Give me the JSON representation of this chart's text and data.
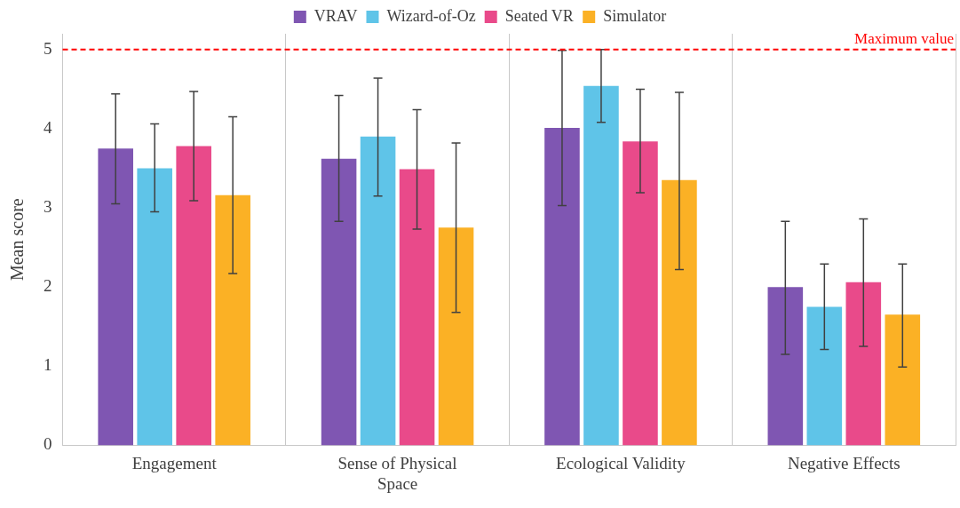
{
  "chart_data": {
    "type": "bar",
    "ylabel": "Mean score",
    "categories": [
      "Engagement",
      "Sense of Physical Space",
      "Ecological Validity",
      "Negative Effects"
    ],
    "series": [
      {
        "name": "VRAV",
        "color": "#7f56b2",
        "values": [
          3.75,
          3.62,
          4.01,
          2.0
        ],
        "errors": [
          [
            3.05,
            4.44
          ],
          [
            2.83,
            4.42
          ],
          [
            3.03,
            4.99
          ],
          [
            1.15,
            2.83
          ]
        ]
      },
      {
        "name": "Wizard-of-Oz",
        "color": "#5fc4e8",
        "values": [
          3.5,
          3.9,
          4.54,
          1.75
        ],
        "errors": [
          [
            2.95,
            4.06
          ],
          [
            3.15,
            4.64
          ],
          [
            4.08,
            5.0
          ],
          [
            1.21,
            2.29
          ]
        ]
      },
      {
        "name": "Seated VR",
        "color": "#e94a8a",
        "values": [
          3.78,
          3.49,
          3.84,
          2.06
        ],
        "errors": [
          [
            3.09,
            4.47
          ],
          [
            2.73,
            4.24
          ],
          [
            3.19,
            4.5
          ],
          [
            1.25,
            2.86
          ]
        ]
      },
      {
        "name": "Simulator",
        "color": "#fbb125",
        "values": [
          3.16,
          2.75,
          3.35,
          1.65
        ],
        "errors": [
          [
            2.17,
            4.15
          ],
          [
            1.68,
            3.82
          ],
          [
            2.22,
            4.46
          ],
          [
            0.99,
            2.29
          ]
        ]
      }
    ],
    "ylim": [
      0,
      5.2
    ],
    "yticks": [
      0,
      1,
      2,
      3,
      4,
      5
    ],
    "grid": "x",
    "legend": "top",
    "ref_lines": [
      {
        "axis": "y",
        "value": 5,
        "label": "Maximum value",
        "color": "#ff0000",
        "line_style": "dashed"
      }
    ]
  }
}
